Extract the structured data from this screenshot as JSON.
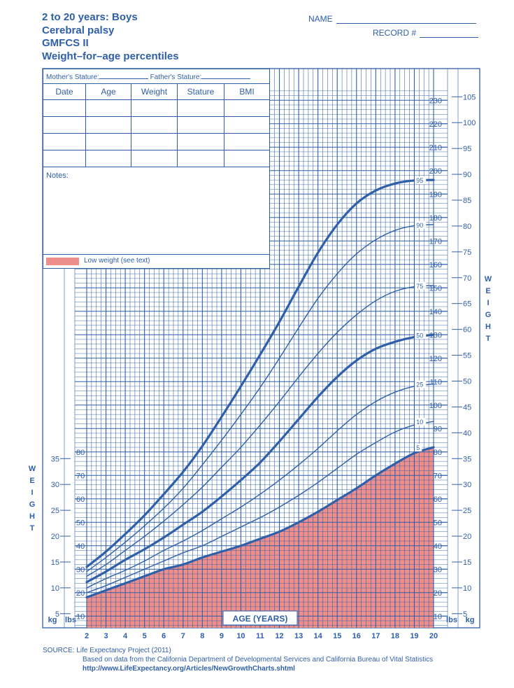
{
  "header": {
    "title_lines": [
      "2 to 20 years: Boys",
      "Cerebral palsy",
      "GMFCS II",
      "Weight–for–age percentiles"
    ],
    "name_label": "NAME",
    "record_label": "RECORD #"
  },
  "record_table": {
    "mothers_stature": "Mother's Stature:",
    "fathers_stature": "Father's Stature:",
    "columns": [
      "Date",
      "Age",
      "Weight",
      "Stature",
      "BMI"
    ],
    "notes_label": "Notes:"
  },
  "legend": {
    "low_weight": "Low weight (see text)"
  },
  "source": {
    "line1": "SOURCE:  Life Expectancy Project (2011)",
    "line2": "Based on data from the California Department of Developmental Services and California Bureau of Vital Statistics",
    "line3": "http://www.LifeExpectancy.org/Articles/NewGrowthCharts.shtml"
  },
  "colors": {
    "grid": "#2f5fa8",
    "fill": "#ef8f8b",
    "text": "#2f5fa8"
  },
  "chart_data": {
    "type": "line",
    "title": "Weight–for–age percentiles",
    "xlabel": "AGE (YEARS)",
    "ylabel": "WEIGHT",
    "x": [
      2,
      3,
      4,
      5,
      6,
      7,
      8,
      9,
      10,
      11,
      12,
      13,
      14,
      15,
      16,
      17,
      18,
      19,
      20
    ],
    "x_ticks": [
      2,
      3,
      4,
      5,
      6,
      7,
      8,
      9,
      10,
      11,
      12,
      13,
      14,
      15,
      16,
      17,
      18,
      19,
      20
    ],
    "xlim": [
      2,
      20
    ],
    "ylim_lbs": [
      5,
      235
    ],
    "y_units": {
      "left": "kg",
      "left_inner": "lbs",
      "right_inner": "lbs",
      "right": "kg"
    },
    "left_lbs_ticks": [
      10,
      20,
      30,
      40,
      50,
      60,
      70,
      80
    ],
    "left_kg_ticks": [
      5,
      10,
      15,
      20,
      25,
      30,
      35
    ],
    "right_lbs_ticks": [
      10,
      20,
      30,
      40,
      50,
      60,
      70,
      80,
      90,
      100,
      110,
      120,
      130,
      140,
      150,
      160,
      170,
      180,
      190,
      200,
      210,
      220,
      230
    ],
    "right_kg_ticks": [
      5,
      10,
      15,
      20,
      25,
      30,
      35,
      40,
      45,
      50,
      55,
      60,
      65,
      70,
      75,
      80,
      85,
      90,
      95,
      100,
      105
    ],
    "grid": true,
    "shaded_region": "below 5th percentile",
    "series": [
      {
        "name": "5",
        "values": [
          18,
          21,
          24,
          27,
          30,
          32,
          35,
          37.5,
          40,
          43,
          46,
          50,
          54.5,
          59.5,
          64.5,
          70,
          75,
          79.5,
          82
        ],
        "bold": true
      },
      {
        "name": "10",
        "values": [
          20,
          23,
          26.5,
          30,
          33.5,
          37,
          40,
          44,
          48,
          52,
          56.5,
          61.5,
          67,
          73,
          79,
          84,
          88.5,
          91.5,
          93
        ],
        "bold": false
      },
      {
        "name": "25",
        "values": [
          22,
          26,
          29.5,
          33.5,
          38,
          42,
          46.5,
          51.5,
          56.5,
          62,
          68,
          74.5,
          81.5,
          89,
          96,
          101.5,
          105.5,
          108,
          109
        ],
        "bold": false
      },
      {
        "name": "50",
        "values": [
          24.5,
          29,
          34,
          38.5,
          43.5,
          49,
          54.5,
          61,
          68,
          75.5,
          84.5,
          94,
          103.5,
          112,
          119,
          124,
          127,
          129,
          130
        ],
        "bold": true
      },
      {
        "name": "75",
        "values": [
          27,
          32,
          38,
          44,
          50.5,
          57.5,
          65,
          73.5,
          82,
          91.5,
          101.5,
          112,
          122,
          131,
          138.5,
          144.5,
          148.5,
          150.5,
          151
        ],
        "bold": false
      },
      {
        "name": "90",
        "values": [
          29,
          35,
          41.5,
          48.5,
          56,
          64.5,
          74.5,
          85,
          96,
          107.5,
          120,
          133,
          145.5,
          156,
          164.5,
          170.5,
          174.5,
          176.5,
          177
        ],
        "bold": false
      },
      {
        "name": "95",
        "values": [
          31,
          37.5,
          45,
          53,
          62,
          71.5,
          82.5,
          95,
          108,
          121.5,
          135.5,
          150.5,
          165,
          177,
          186,
          191.5,
          194.5,
          195.8,
          196
        ],
        "bold": true
      }
    ]
  }
}
